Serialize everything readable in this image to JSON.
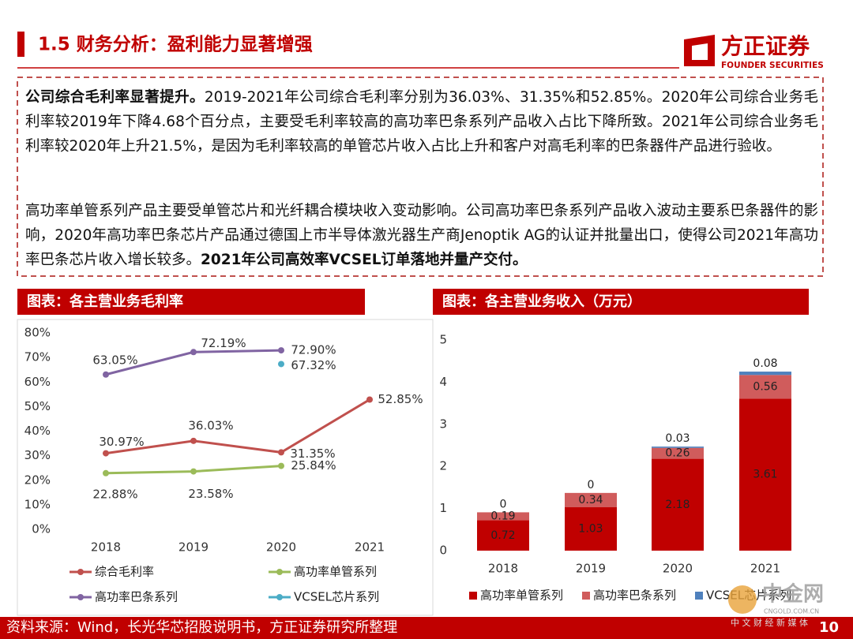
{
  "header": {
    "title": "1.5 财务分析：盈利能力显著增强",
    "logo_name": "方正证券",
    "logo_sub": "FOUNDER SECURITIES"
  },
  "paragraph_1": {
    "lead": "公司综合毛利率显著提升。",
    "body": "2019-2021年公司综合毛利率分别为36.03%、31.35%和52.85%。2020年公司综合业务毛利率较2019年下降4.68个百分点，主要受毛利率较高的高功率巴条系列产品收入占比下降所致。2021年公司综合业务毛利率较2020年上升21.5%，是因为毛利率较高的单管芯片收入占比上升和客户对高毛利率的巴条器件产品进行验收。"
  },
  "paragraph_2": {
    "body": "高功率单管系列产品主要受单管芯片和光纤耦合模块收入变动影响。公司高功率巴条系列产品收入波动主要系巴条器件的影响，2020年高功率巴条芯片产品通过德国上市半导体激光器生产商Jenoptik AG的认证并批量出口，使得公司2021年高功率巴条芯片收入增长较多。",
    "tail": "2021年公司高效率VCSEL订单落地并量产交付。"
  },
  "chart_data": [
    {
      "type": "line",
      "title": "图表：各主营业务毛利率",
      "categories": [
        "2018",
        "2019",
        "2020",
        "2021"
      ],
      "series": [
        {
          "name": "综合毛利率",
          "color": "#c0504d",
          "values": [
            30.97,
            36.03,
            31.35,
            52.85
          ],
          "value_labels": [
            "30.97%",
            "36.03%",
            "31.35%",
            "52.85%"
          ]
        },
        {
          "name": "高功率单管系列",
          "color": "#9bbb59",
          "values": [
            22.88,
            23.58,
            25.84,
            null
          ],
          "value_labels": [
            "22.88%",
            "23.58%",
            "25.84%",
            null
          ]
        },
        {
          "name": "高功率巴条系列",
          "color": "#8064a2",
          "values": [
            63.05,
            72.19,
            72.9,
            null
          ],
          "value_labels": [
            "63.05%",
            "72.19%",
            "72.90%",
            null
          ]
        },
        {
          "name": "VCSEL芯片系列",
          "color": "#4bacc6",
          "values": [
            null,
            null,
            67.32,
            null
          ],
          "value_labels": [
            null,
            null,
            "67.32%",
            null
          ]
        }
      ],
      "ylim": [
        0,
        80
      ],
      "yticks": [
        {
          "value": 0,
          "label": "0%"
        },
        {
          "value": 10,
          "label": "10%"
        },
        {
          "value": 20,
          "label": "20%"
        },
        {
          "value": 30,
          "label": "30%"
        },
        {
          "value": 40,
          "label": "40%"
        },
        {
          "value": 50,
          "label": "50%"
        },
        {
          "value": 60,
          "label": "60%"
        },
        {
          "value": 70,
          "label": "70%"
        },
        {
          "value": 80,
          "label": "80%"
        }
      ]
    },
    {
      "type": "stacked_bar",
      "title": "图表：各主营业务收入（万元）",
      "categories": [
        "2018",
        "2019",
        "2020",
        "2021"
      ],
      "series": [
        {
          "name": "高功率单管系列",
          "color": "#c00000",
          "values": [
            0.72,
            1.03,
            2.18,
            3.61
          ]
        },
        {
          "name": "高功率巴条系列",
          "color": "#d05c5c",
          "values": [
            0.19,
            0.34,
            0.26,
            0.56
          ]
        },
        {
          "name": "VCSEL芯片系列",
          "color": "#4f81bd",
          "values": [
            0,
            0,
            0.03,
            0.08
          ]
        }
      ],
      "ylim": [
        0,
        5
      ],
      "yticks": [
        0,
        1,
        2,
        3,
        4,
        5
      ]
    }
  ],
  "source": "资料来源：Wind，长光华芯招股说明书，方正证券研究所整理",
  "page_number": "10",
  "watermark": {
    "name": "中金网",
    "site": "CNGOLD.COM.CN",
    "slogan": "中 文 财 经 新 媒 体"
  }
}
